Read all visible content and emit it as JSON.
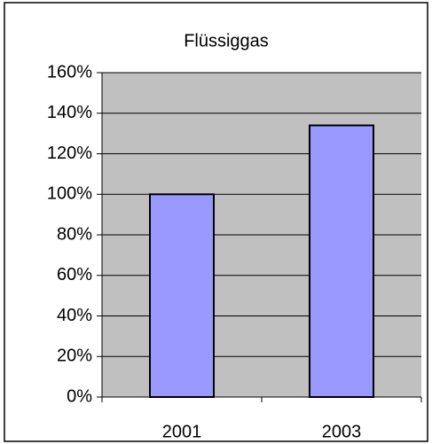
{
  "chart_data": {
    "type": "bar",
    "title": "Flüssiggas",
    "categories": [
      "2001",
      "2003"
    ],
    "values": [
      100,
      134
    ],
    "color": "#9999ff",
    "ylim": [
      0,
      160
    ],
    "yticks": [
      {
        "value": 0,
        "label": "0%"
      },
      {
        "value": 20,
        "label": "20%"
      },
      {
        "value": 40,
        "label": "40%"
      },
      {
        "value": 60,
        "label": "60%"
      },
      {
        "value": 80,
        "label": "80%"
      },
      {
        "value": 100,
        "label": "100%"
      },
      {
        "value": 120,
        "label": "120%"
      },
      {
        "value": 140,
        "label": "140%"
      },
      {
        "value": 160,
        "label": "160%"
      }
    ],
    "grid": true
  }
}
